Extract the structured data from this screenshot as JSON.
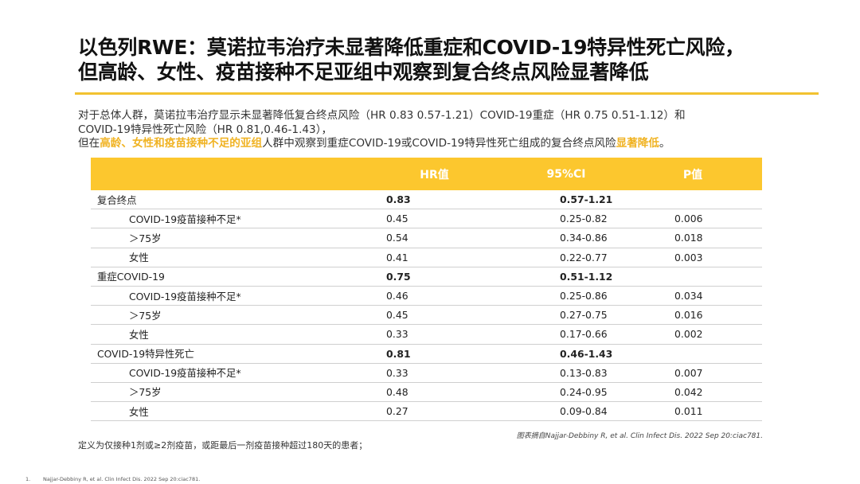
{
  "title": {
    "line1": "以色列RWE：莫诺拉韦治疗未显著降低重症和COVID-19特异性死亡风险，",
    "line2": "但高龄、女性、疫苗接种不足亚组中观察到复合终点风险显著降低"
  },
  "intro": {
    "line1": "对于总体人群，莫诺拉韦治疗显示未显著降低复合终点风险（HR 0.83 0.57-1.21）COVID-19重症（HR 0.75 0.51-1.12）和",
    "line2": "COVID-19特异性死亡风险（HR 0.81,0.46-1.43），",
    "line3_part1": "但在",
    "line3_highlight1": "高龄、女性和疫苗接种不足的亚组",
    "line3_part2": "人群中观察到重症COVID-19或COVID-19特异性死亡组成的复合终点风险",
    "line3_highlight2": "显著降低",
    "line3_part3": "。",
    "highlight_color": "#f0b323"
  },
  "table": {
    "header_color": "#fcc72e",
    "headers": [
      "",
      "HR值",
      "95%CI",
      "P值"
    ],
    "rows": [
      {
        "label": "复合终点",
        "hr": "0.83",
        "ci": "0.57-1.21",
        "p": "",
        "group": true
      },
      {
        "label": "COVID-19疫苗接种不足*",
        "hr": "0.45",
        "ci": "0.25-0.82",
        "p": "0.006",
        "group": false
      },
      {
        "label": "＞75岁",
        "hr": "0.54",
        "ci": "0.34-0.86",
        "p": "0.018",
        "group": false
      },
      {
        "label": "女性",
        "hr": "0.41",
        "ci": "0.22-0.77",
        "p": "0.003",
        "group": false
      },
      {
        "label": "重症COVID-19",
        "hr": "0.75",
        "ci": "0.51-1.12",
        "p": "",
        "group": true
      },
      {
        "label": "COVID-19疫苗接种不足*",
        "hr": "0.46",
        "ci": "0.25-0.86",
        "p": "0.034",
        "group": false
      },
      {
        "label": "＞75岁",
        "hr": "0.45",
        "ci": "0.27-0.75",
        "p": "0.016",
        "group": false
      },
      {
        "label": "女性",
        "hr": "0.33",
        "ci": "0.17-0.66",
        "p": "0.002",
        "group": false
      },
      {
        "label": "COVID-19特异性死亡",
        "hr": "0.81",
        "ci": "0.46-1.43",
        "p": "",
        "group": true
      },
      {
        "label": "COVID-19疫苗接种不足*",
        "hr": "0.33",
        "ci": "0.13-0.83",
        "p": "0.007",
        "group": false
      },
      {
        "label": "＞75岁",
        "hr": "0.48",
        "ci": "0.24-0.95",
        "p": "0.042",
        "group": false
      },
      {
        "label": "女性",
        "hr": "0.27",
        "ci": "0.09-0.84",
        "p": "0.011",
        "group": false
      }
    ]
  },
  "source": "图表摘自Najjar-Debbiny R, et al. Clin Infect Dis. 2022 Sep 20:ciac781.",
  "definition": "定义为仅接种1剂或≥2剂疫苗，或距最后一剂疫苗接种超过180天的患者；",
  "footnote": {
    "number": "1.",
    "text": "Najjar-Debbiny R, et al. Clin Infect Dis. 2022 Sep 20:ciac781."
  },
  "accent_color": "#f2c230"
}
